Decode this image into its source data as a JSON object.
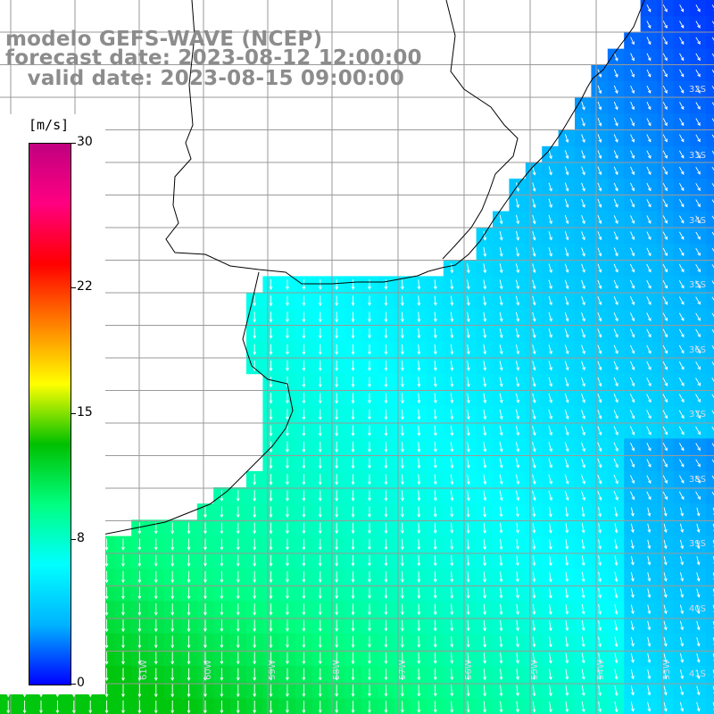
{
  "header": {
    "line1": "modelo GEFS-WAVE (NCEP)",
    "line2": "forecast date: 2023-08-12 12:00:00",
    "line3": "   valid date: 2023-08-15 09:00:00"
  },
  "colorbar": {
    "unit": "[m/s]",
    "ticks": [
      {
        "label": "30",
        "value": 30
      },
      {
        "label": "22",
        "value": 22
      },
      {
        "label": "15",
        "value": 15
      },
      {
        "label": "8",
        "value": 8
      },
      {
        "label": "0",
        "value": 0
      }
    ],
    "gradient_stops": [
      "#0000ff",
      "#00b4ff",
      "#00ffff",
      "#00ff80",
      "#00c000",
      "#ffff00",
      "#ff8000",
      "#ff0000",
      "#ff0080",
      "#c00080"
    ]
  },
  "map": {
    "lat_labels": [
      "32S",
      "33S",
      "34S",
      "35S",
      "36S",
      "37S",
      "38S",
      "39S",
      "40S",
      "41S"
    ],
    "lon_labels": [
      "63W",
      "62W",
      "61W",
      "60W",
      "59W",
      "58W",
      "57W",
      "56W",
      "55W",
      "54W",
      "53W"
    ],
    "field": "wind speed",
    "land_color": "#ffffff",
    "arrow_color": "#ffffff",
    "grid_color": "#9a9a9a"
  }
}
